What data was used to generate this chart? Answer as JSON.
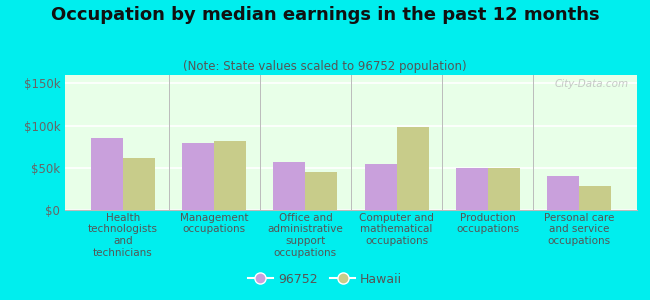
{
  "title": "Occupation by median earnings in the past 12 months",
  "subtitle": "(Note: State values scaled to 96752 population)",
  "categories": [
    "Health\ntechnologists\nand\ntechnicians",
    "Management\noccupations",
    "Office and\nadministrative\nsupport\noccupations",
    "Computer and\nmathematical\noccupations",
    "Production\noccupations",
    "Personal care\nand service\noccupations"
  ],
  "values_96752": [
    85000,
    79000,
    57000,
    54000,
    50000,
    40000
  ],
  "values_hawaii": [
    62000,
    82000,
    45000,
    98000,
    50000,
    29000
  ],
  "color_96752": "#c9a0dc",
  "color_hawaii": "#c8cc8a",
  "ylim": [
    0,
    160000
  ],
  "yticks": [
    0,
    50000,
    100000,
    150000
  ],
  "ytick_labels": [
    "$0",
    "$50k",
    "$100k",
    "$150k"
  ],
  "chart_bg_top": "#e8ffe8",
  "chart_bg_bottom": "#f0fff0",
  "outer_background": "#00eeee",
  "legend_label_96752": "96752",
  "legend_label_hawaii": "Hawaii",
  "watermark": "City-Data.com",
  "title_fontsize": 13,
  "subtitle_fontsize": 8.5,
  "tick_label_fontsize": 7.5,
  "ytick_fontsize": 8.5
}
